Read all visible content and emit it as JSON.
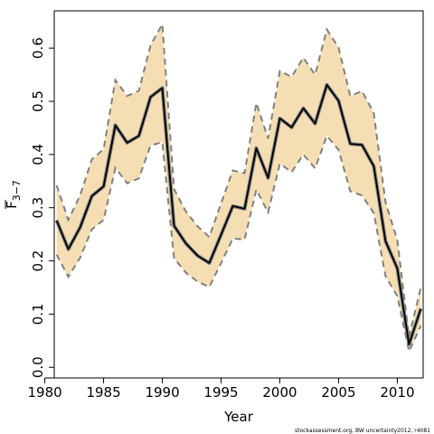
{
  "chart_data": {
    "type": "line",
    "title": "",
    "xlabel": "Year",
    "ylabel": {
      "main": "F",
      "sub": "3−7"
    },
    "footnote": "stockassessment.org, BW uncertainty2012, r4081",
    "xlim": [
      1980.8,
      2012.2
    ],
    "ylim": [
      -0.02,
      0.67
    ],
    "xticks": [
      1980,
      1985,
      1990,
      1995,
      2000,
      2005,
      2010
    ],
    "yticks": [
      0.0,
      0.1,
      0.2,
      0.3,
      0.4,
      0.5,
      0.6
    ],
    "ytick_labels": [
      "0.0",
      "0.1",
      "0.2",
      "0.3",
      "0.4",
      "0.5",
      "0.6"
    ],
    "grid": false,
    "colors": {
      "band": "#f5deb3",
      "estimate": "#000000",
      "bounds": "#808080"
    },
    "x": [
      1981,
      1982,
      1983,
      1984,
      1985,
      1986,
      1987,
      1988,
      1989,
      1990,
      1991,
      1992,
      1993,
      1994,
      1995,
      1996,
      1997,
      1998,
      1999,
      2000,
      2001,
      2002,
      2003,
      2004,
      2005,
      2006,
      2007,
      2008,
      2009,
      2010,
      2011,
      2012
    ],
    "series": [
      {
        "role": "estimate",
        "values": [
          0.276,
          0.222,
          0.263,
          0.322,
          0.34,
          0.455,
          0.422,
          0.435,
          0.508,
          0.525,
          0.266,
          0.233,
          0.21,
          0.196,
          0.249,
          0.303,
          0.298,
          0.412,
          0.356,
          0.468,
          0.451,
          0.487,
          0.458,
          0.531,
          0.501,
          0.42,
          0.418,
          0.378,
          0.237,
          0.186,
          0.043,
          0.11
        ]
      },
      {
        "role": "upper",
        "values": [
          0.342,
          0.277,
          0.323,
          0.391,
          0.41,
          0.54,
          0.51,
          0.52,
          0.605,
          0.645,
          0.335,
          0.293,
          0.265,
          0.245,
          0.308,
          0.37,
          0.365,
          0.497,
          0.43,
          0.557,
          0.546,
          0.582,
          0.55,
          0.635,
          0.601,
          0.51,
          0.519,
          0.478,
          0.31,
          0.239,
          0.057,
          0.15
        ]
      },
      {
        "role": "lower",
        "values": [
          0.212,
          0.17,
          0.206,
          0.259,
          0.277,
          0.375,
          0.346,
          0.355,
          0.417,
          0.423,
          0.205,
          0.178,
          0.161,
          0.151,
          0.196,
          0.242,
          0.24,
          0.334,
          0.291,
          0.383,
          0.367,
          0.4,
          0.374,
          0.435,
          0.409,
          0.331,
          0.323,
          0.29,
          0.171,
          0.134,
          0.03,
          0.078
        ]
      }
    ]
  }
}
